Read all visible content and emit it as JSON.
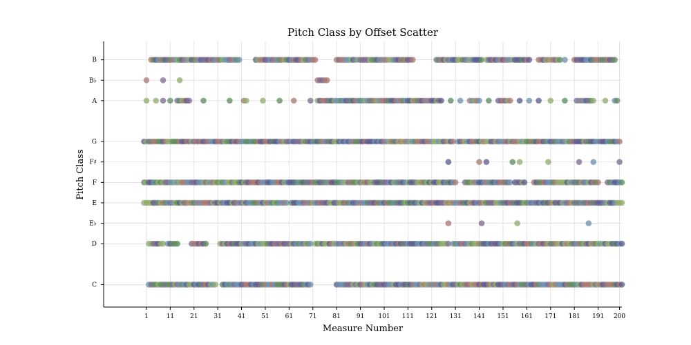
{
  "chart_data": {
    "type": "scatter",
    "title": "Pitch Class by Offset Scatter",
    "xlabel": "Measure Number",
    "ylabel": "Pitch Class",
    "xlim": [
      -17,
      201
    ],
    "x_ticks": [
      1,
      11,
      21,
      31,
      41,
      51,
      61,
      71,
      81,
      91,
      101,
      111,
      121,
      131,
      141,
      151,
      161,
      171,
      181,
      191,
      200
    ],
    "y_categories": [
      {
        "label": "C",
        "value": 0
      },
      {
        "label": "D",
        "value": 2
      },
      {
        "label": "E♭",
        "value": 3
      },
      {
        "label": "E",
        "value": 4
      },
      {
        "label": "F",
        "value": 5
      },
      {
        "label": "F♯",
        "value": 6
      },
      {
        "label": "G",
        "value": 7
      },
      {
        "label": "A",
        "value": 9
      },
      {
        "label": "B♭",
        "value": 10
      },
      {
        "label": "B",
        "value": 11
      }
    ],
    "ylim": [
      -1.1,
      11.9
    ],
    "grid": true,
    "marker_colors": [
      "#5a5a8c",
      "#6a8fae",
      "#a8766f",
      "#5e8a5e",
      "#8faa6c",
      "#7a6a8e"
    ],
    "series": [
      {
        "pitch_class": 11,
        "segments": [
          [
            3,
            40
          ],
          [
            47,
            72
          ],
          [
            81,
            113
          ],
          [
            123,
            142
          ],
          [
            144,
            162
          ],
          [
            166,
            175
          ],
          [
            177,
            177
          ],
          [
            181,
            198
          ]
        ]
      },
      {
        "pitch_class": 10,
        "segments": [
          [
            1,
            1
          ],
          [
            8,
            8
          ],
          [
            15,
            15
          ],
          [
            73,
            77
          ]
        ]
      },
      {
        "pitch_class": 9,
        "segments": [
          [
            1,
            1
          ],
          [
            5,
            5
          ],
          [
            8,
            8
          ],
          [
            11,
            11
          ],
          [
            14,
            18
          ],
          [
            19,
            19
          ],
          [
            25,
            25
          ],
          [
            36,
            36
          ],
          [
            42,
            43
          ],
          [
            50,
            50
          ],
          [
            57,
            57
          ],
          [
            63,
            63
          ],
          [
            70,
            70
          ],
          [
            73,
            100
          ],
          [
            101,
            125
          ],
          [
            129,
            129
          ],
          [
            133,
            133
          ],
          [
            137,
            141
          ],
          [
            145,
            145
          ],
          [
            149,
            154
          ],
          [
            158,
            158
          ],
          [
            162,
            162
          ],
          [
            166,
            166
          ],
          [
            171,
            171
          ],
          [
            177,
            177
          ],
          [
            182,
            185
          ],
          [
            186,
            189
          ],
          [
            194,
            194
          ],
          [
            198,
            199
          ]
        ]
      },
      {
        "pitch_class": 7,
        "segments": [
          [
            0,
            130
          ],
          [
            132,
            200
          ]
        ]
      },
      {
        "pitch_class": 6,
        "segments": [
          [
            128,
            128
          ],
          [
            141,
            141
          ],
          [
            144,
            144
          ],
          [
            155,
            155
          ],
          [
            158,
            158
          ],
          [
            170,
            170
          ],
          [
            183,
            183
          ],
          [
            189,
            189
          ],
          [
            200,
            200
          ]
        ]
      },
      {
        "pitch_class": 5,
        "segments": [
          [
            0,
            131
          ],
          [
            135,
            154
          ],
          [
            156,
            160
          ],
          [
            164,
            191
          ],
          [
            195,
            201
          ]
        ]
      },
      {
        "pitch_class": 4,
        "segments": [
          [
            0,
            60
          ],
          [
            62,
            160
          ],
          [
            161,
            201
          ]
        ]
      },
      {
        "pitch_class": 3,
        "segments": [
          [
            128,
            128
          ],
          [
            142,
            142
          ],
          [
            157,
            157
          ],
          [
            187,
            187
          ]
        ]
      },
      {
        "pitch_class": 2,
        "segments": [
          [
            2,
            8
          ],
          [
            10,
            14
          ],
          [
            20,
            26
          ],
          [
            32,
            70
          ],
          [
            72,
            128
          ],
          [
            130,
            201
          ]
        ]
      },
      {
        "pitch_class": 0,
        "segments": [
          [
            2,
            30
          ],
          [
            33,
            70
          ],
          [
            81,
            131
          ],
          [
            132,
            201
          ]
        ]
      }
    ]
  }
}
